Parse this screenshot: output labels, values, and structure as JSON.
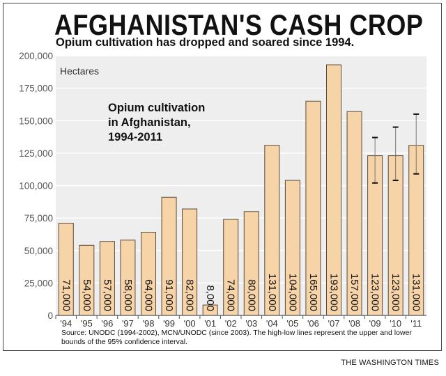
{
  "header": {
    "title": "AFGHANISTAN'S CASH CROP",
    "subtitle": "Opium cultivation has dropped and soared since 1994."
  },
  "footer": {
    "source": "Source: UNODC (1994-2002), MCN/UNODC (since 2003). The high-low lines represent the upper and lower bounds of the 95% confidence interval.",
    "credit": "THE WASHINGTON TIMES"
  },
  "chart_data": {
    "type": "bar",
    "title": "Opium cultivation in Afghanistan, 1994-2011",
    "title_lines": [
      "Opium cultivation",
      "in Afghanistan,",
      "1994-2011"
    ],
    "ylabel": "Hectares",
    "ylim": [
      0,
      200000
    ],
    "yticks": [
      0,
      25000,
      50000,
      75000,
      100000,
      125000,
      150000,
      175000,
      200000
    ],
    "ytick_labels": [
      "0",
      "25,000",
      "50,000",
      "75,000",
      "100,000",
      "125,000",
      "150,000",
      "175,000",
      "200,000"
    ],
    "grid": true,
    "categories": [
      "'94",
      "'95",
      "'96",
      "'97",
      "'98",
      "'99",
      "'00",
      "'01",
      "'02",
      "'03",
      "'04",
      "'05",
      "'06",
      "'07",
      "'08",
      "'09",
      "'10",
      "'11"
    ],
    "values": [
      71000,
      54000,
      57000,
      58000,
      64000,
      91000,
      82000,
      8000,
      74000,
      80000,
      131000,
      104000,
      165000,
      193000,
      157000,
      123000,
      123000,
      131000
    ],
    "value_labels": [
      "71,000",
      "54,000",
      "57,000",
      "58,000",
      "64,000",
      "91,000",
      "82,000",
      "8,000",
      "74,000",
      "80,000",
      "131,000",
      "104,000",
      "165,000",
      "193,000",
      "157,000",
      "123,000",
      "123,000",
      "131,000"
    ],
    "confidence_intervals": [
      {
        "category": "'09",
        "low": 102000,
        "high": 137000
      },
      {
        "category": "'10",
        "low": 104000,
        "high": 145000
      },
      {
        "category": "'11",
        "low": 109000,
        "high": 155000
      }
    ],
    "colors": {
      "bar": "#f7d3a8",
      "bar_stroke": "#5a4a3a",
      "plot_bg": "#eeeeee",
      "grid": "#ffffff",
      "axis_text": "#555555"
    }
  }
}
